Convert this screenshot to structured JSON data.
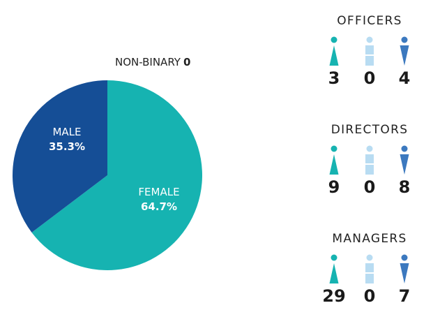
{
  "colors": {
    "female": "#16b3b1",
    "male": "#154e96",
    "non_binary": "#b8dcf2",
    "male_icon": "#3c79bf"
  },
  "chart_data": {
    "type": "pie",
    "slices": [
      {
        "label": "MALE",
        "value": 35.3,
        "display": "35.3%"
      },
      {
        "label": "FEMALE",
        "value": 64.7,
        "display": "64.7%"
      }
    ],
    "non_binary": {
      "label": "NON-BINARY",
      "value": "0"
    }
  },
  "groups": [
    {
      "title": "OFFICERS",
      "female": "3",
      "non_binary": "0",
      "male": "4"
    },
    {
      "title": "DIRECTORS",
      "female": "9",
      "non_binary": "0",
      "male": "8"
    },
    {
      "title": "MANAGERS",
      "female": "29",
      "non_binary": "0",
      "male": "7"
    }
  ],
  "icons": {
    "female": "female-person-icon",
    "non_binary": "non-binary-person-icon",
    "male": "male-person-icon"
  }
}
